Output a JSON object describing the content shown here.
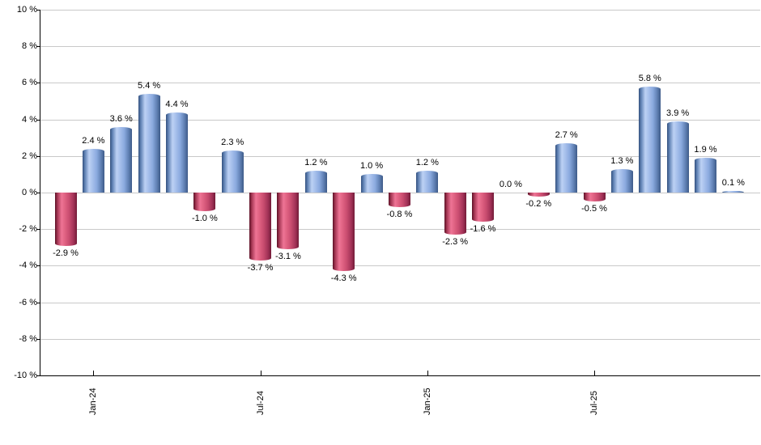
{
  "chart_data": {
    "type": "bar",
    "title": "",
    "xlabel": "",
    "ylabel": "",
    "ylim": [
      -10,
      10
    ],
    "grid": true,
    "values": [
      -2.9,
      2.4,
      3.6,
      5.4,
      4.4,
      -1.0,
      2.3,
      -3.7,
      -3.1,
      1.2,
      -4.3,
      1.0,
      -0.8,
      1.2,
      -2.3,
      -1.6,
      0.0,
      -0.2,
      2.7,
      -0.5,
      1.3,
      5.8,
      3.9,
      1.9,
      0.1
    ],
    "value_labels": [
      "-2.9 %",
      "2.4 %",
      "3.6 %",
      "5.4 %",
      "4.4 %",
      "-1.0 %",
      "2.3 %",
      "-3.7 %",
      "-3.1 %",
      "1.2 %",
      "-4.3 %",
      "1.0 %",
      "-0.8 %",
      "1.2 %",
      "-2.3 %",
      "-1.6 %",
      "0.0 %",
      "-0.2 %",
      "2.7 %",
      "-0.5 %",
      "1.3 %",
      "5.8 %",
      "3.9 %",
      "1.9 %",
      "0.1 %"
    ],
    "y_ticks": [
      10,
      8,
      6,
      4,
      2,
      0,
      -2,
      -4,
      -6,
      -8,
      -10
    ],
    "y_tick_labels": [
      "10 %",
      "8 %",
      "6 %",
      "4 %",
      "2 %",
      "0 %",
      "-2 %",
      "-4 %",
      "-6 %",
      "-8 %",
      "-10 %"
    ],
    "x_ticks": [
      {
        "label": "Jan-24",
        "bar_index": 1
      },
      {
        "label": "Jul-24",
        "bar_index": 7
      },
      {
        "label": "Jan-25",
        "bar_index": 13
      },
      {
        "label": "Jul-25",
        "bar_index": 19
      }
    ],
    "legend": null,
    "colors": {
      "positive_bar_dark": "#33517f",
      "positive_bar_highlight": "#bcd1f4",
      "negative_bar_dark": "#5c1126",
      "negative_bar_highlight": "#ee7495",
      "gridline": "#c9c9c9",
      "axis": "#000000",
      "background": "#ffffff",
      "label_text": "#000000"
    }
  }
}
